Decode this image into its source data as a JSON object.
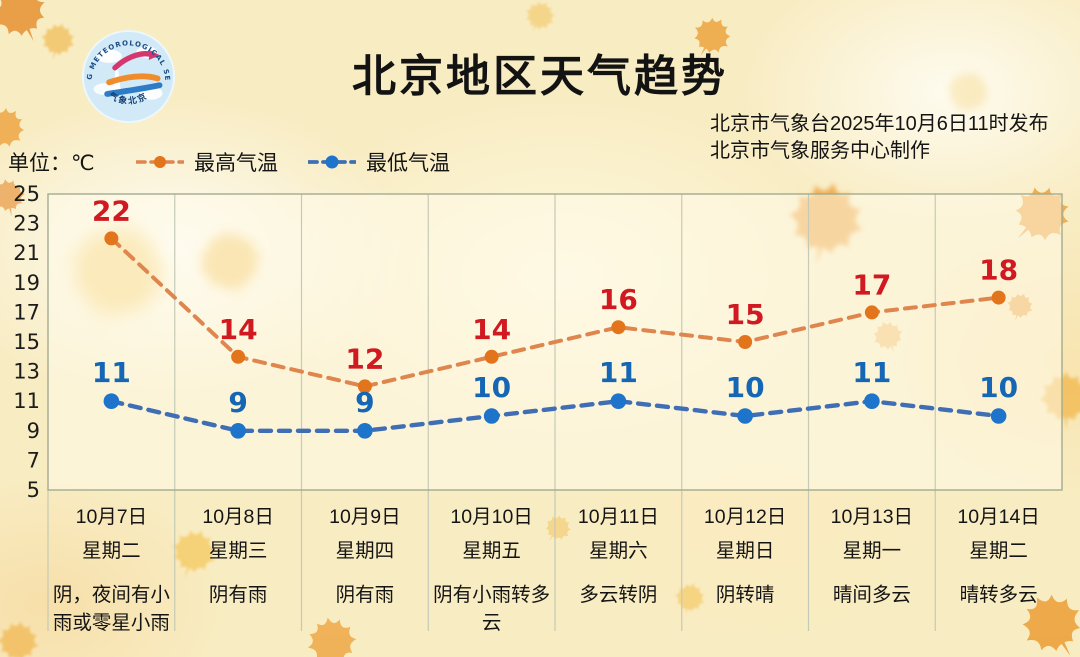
{
  "header": {
    "title": "北京地区天气趋势",
    "publisher_line1": "北京市气象台2025年10月6日11时发布",
    "publisher_line2": "北京市气象服务中心制作",
    "logo": {
      "ring_text": "BEIJING METEOROLOGICAL SERVICE",
      "bottom_text": "气象北京"
    }
  },
  "unit_label": "单位：℃",
  "legend": {
    "max_label": "最高气温",
    "min_label": "最低气温"
  },
  "colors": {
    "max_line": "#df854e",
    "max_dot": "#e2741c",
    "max_value_label": "#d01920",
    "min_line": "#3f6eb5",
    "min_dot": "#1e74ca",
    "min_value_label": "#1566b4",
    "grid": "#c5cab6",
    "plot_border": "#a2ab90",
    "plot_bg": "rgba(255,252,236,0.5)",
    "page_bg": "#f8ecc2",
    "text": "#141414"
  },
  "chart_data": {
    "type": "line",
    "title": "北京地区天气趋势",
    "xlabel": "",
    "ylabel": "℃",
    "ylim": [
      5,
      25
    ],
    "yticks": [
      25,
      23,
      21,
      19,
      17,
      15,
      13,
      11,
      9,
      7,
      5
    ],
    "grid": "vertical-only",
    "legend_position": "top-left",
    "line_style": "dashed",
    "categories": [
      "10月7日",
      "10月8日",
      "10月9日",
      "10月10日",
      "10月11日",
      "10月12日",
      "10月13日",
      "10月14日"
    ],
    "series": [
      {
        "name": "最高气温",
        "values": [
          22,
          14,
          12,
          14,
          16,
          15,
          17,
          18
        ]
      },
      {
        "name": "最低气温",
        "values": [
          11,
          9,
          9,
          10,
          11,
          10,
          11,
          10
        ]
      }
    ],
    "days": [
      {
        "date": "10月7日",
        "weekday": "星期二",
        "weather": "阴，夜间有小雨或零星小雨"
      },
      {
        "date": "10月8日",
        "weekday": "星期三",
        "weather": "阴有雨"
      },
      {
        "date": "10月9日",
        "weekday": "星期四",
        "weather": "阴有雨"
      },
      {
        "date": "10月10日",
        "weekday": "星期五",
        "weather": "阴有小雨转多云"
      },
      {
        "date": "10月11日",
        "weekday": "星期六",
        "weather": "多云转阴"
      },
      {
        "date": "10月12日",
        "weekday": "星期日",
        "weather": "阴转晴"
      },
      {
        "date": "10月13日",
        "weekday": "星期一",
        "weather": "晴间多云"
      },
      {
        "date": "10月14日",
        "weekday": "星期二",
        "weather": "晴转多云"
      }
    ]
  }
}
